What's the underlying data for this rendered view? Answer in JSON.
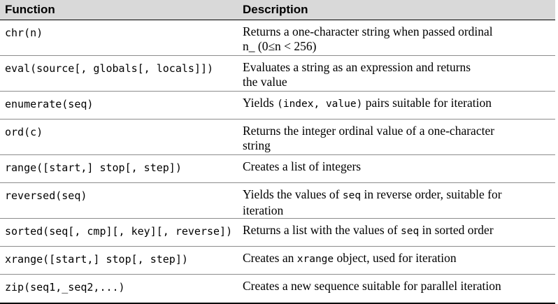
{
  "headers": {
    "function": "Function",
    "description": "Description"
  },
  "rows": [
    {
      "function": "chr(n)",
      "desc_line1": "Returns a one-character string when passed ordinal",
      "desc_line2": "n_ (0≤n < 256)"
    },
    {
      "function": "eval(source[, globals[, locals]])",
      "desc_line1": "Evaluates a string as an expression and returns",
      "desc_line2": "the value"
    },
    {
      "function": "enumerate(seq)",
      "desc_pre": "Yields ",
      "desc_code": "(index, value)",
      "desc_post": " pairs suitable for iteration"
    },
    {
      "function": "ord(c)",
      "desc_line1": "Returns the integer ordinal value of a one-character",
      "desc_line2": "string"
    },
    {
      "function": "range([start,] stop[, step])",
      "desc_line1": "Creates a list of integers"
    },
    {
      "function": "reversed(seq)",
      "desc_pre": "Yields the values of ",
      "desc_code": "seq",
      "desc_post": " in reverse order, suitable for",
      "desc_line2": "iteration"
    },
    {
      "function": "sorted(seq[, cmp][, key][, reverse])",
      "desc_pre": "Returns a list with the values of ",
      "desc_code": "seq",
      "desc_post": " in sorted order"
    },
    {
      "function": "xrange([start,] stop[, step])",
      "desc_pre": "Creates an ",
      "desc_code": "xrange",
      "desc_post": " object, used for iteration"
    },
    {
      "function": "zip(seq1,_seq2,...)",
      "desc_line1": "Creates a new sequence suitable for parallel iteration"
    }
  ]
}
